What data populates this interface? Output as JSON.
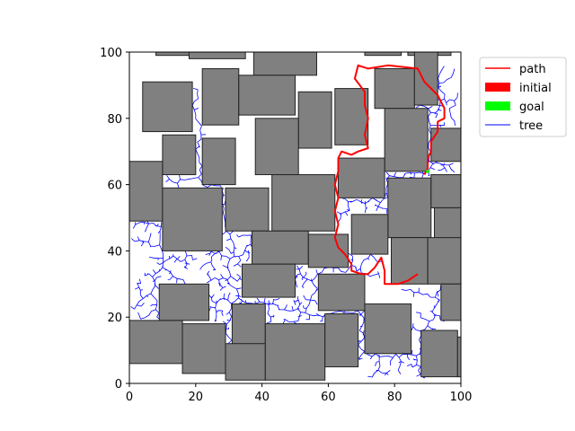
{
  "chart_data": {
    "type": "scatter",
    "title": "",
    "xlabel": "",
    "ylabel": "",
    "xlim": [
      0,
      100
    ],
    "ylim": [
      0,
      100
    ],
    "x_ticks": [
      "0",
      "20",
      "40",
      "60",
      "80",
      "100"
    ],
    "y_ticks": [
      "0",
      "20",
      "40",
      "60",
      "80",
      "100"
    ],
    "grid": false,
    "legend_position": "outside-upper-right",
    "legend": [
      {
        "name": "path",
        "kind": "line",
        "color": "#ff0000"
      },
      {
        "name": "initial",
        "kind": "patch",
        "color": "#ff0000"
      },
      {
        "name": "goal",
        "kind": "patch",
        "color": "#00ff00"
      },
      {
        "name": "tree",
        "kind": "line",
        "color": "#0000ff"
      }
    ],
    "obstacle_color": "#808080",
    "obstacles": [
      [
        8,
        99,
        15,
        1.5
      ],
      [
        18,
        98,
        17,
        2
      ],
      [
        37.5,
        93,
        19,
        7
      ],
      [
        57,
        100,
        11,
        2
      ],
      [
        71,
        99,
        11,
        1.5
      ],
      [
        84,
        99,
        13,
        1.5
      ],
      [
        4,
        76,
        15,
        15
      ],
      [
        22,
        78,
        11,
        17
      ],
      [
        33,
        81,
        17,
        12
      ],
      [
        51,
        71,
        10,
        17
      ],
      [
        62,
        72,
        10,
        17
      ],
      [
        74,
        83,
        12,
        12
      ],
      [
        86,
        84,
        7,
        16
      ],
      [
        10,
        63,
        10,
        12
      ],
      [
        22,
        60,
        10,
        14
      ],
      [
        38,
        63,
        13,
        17
      ],
      [
        77,
        64,
        13,
        19
      ],
      [
        91,
        67,
        10,
        10
      ],
      [
        0,
        49,
        10,
        18
      ],
      [
        10,
        40,
        18,
        19
      ],
      [
        29,
        46,
        13,
        13
      ],
      [
        43,
        46,
        19,
        17
      ],
      [
        63,
        56,
        14,
        12
      ],
      [
        78,
        44,
        13,
        18
      ],
      [
        91,
        53,
        9,
        10
      ],
      [
        92,
        43,
        8,
        10
      ],
      [
        37,
        36,
        17,
        10
      ],
      [
        54,
        35,
        12,
        10
      ],
      [
        67,
        39,
        11,
        12
      ],
      [
        79,
        30,
        11,
        14
      ],
      [
        90,
        30,
        10,
        14
      ],
      [
        34,
        26,
        16,
        10
      ],
      [
        57,
        22,
        14,
        11
      ],
      [
        9,
        19,
        15,
        11
      ],
      [
        94,
        19,
        6,
        11
      ],
      [
        31,
        11,
        10,
        13
      ],
      [
        0,
        6,
        16,
        13
      ],
      [
        16,
        3,
        13,
        15
      ],
      [
        29,
        1,
        12,
        11
      ],
      [
        41,
        1,
        18,
        17
      ],
      [
        59,
        5,
        10,
        16
      ],
      [
        71,
        9,
        14,
        15
      ],
      [
        88,
        2,
        11,
        14
      ],
      [
        99,
        2,
        1,
        12
      ]
    ],
    "path": [
      [
        89,
        63
      ],
      [
        90,
        65
      ],
      [
        90,
        68
      ],
      [
        91,
        70
      ],
      [
        91,
        73
      ],
      [
        93,
        76
      ],
      [
        93,
        79
      ],
      [
        95,
        80
      ],
      [
        95,
        83
      ],
      [
        93,
        87
      ],
      [
        89,
        91
      ],
      [
        87,
        95
      ],
      [
        78,
        96
      ],
      [
        72,
        95
      ],
      [
        69,
        96
      ],
      [
        68,
        92
      ],
      [
        71,
        88
      ],
      [
        71,
        84
      ],
      [
        72,
        80
      ],
      [
        71,
        75
      ],
      [
        72,
        71
      ],
      [
        69,
        70
      ],
      [
        67,
        69
      ],
      [
        64,
        70
      ],
      [
        63,
        68
      ],
      [
        63,
        64
      ],
      [
        62,
        60
      ],
      [
        63,
        56
      ],
      [
        62,
        52
      ],
      [
        63,
        48
      ],
      [
        62,
        44
      ],
      [
        63,
        41
      ],
      [
        65,
        39
      ],
      [
        67,
        36
      ],
      [
        67,
        34
      ],
      [
        70,
        33
      ],
      [
        72,
        33
      ],
      [
        74,
        35
      ],
      [
        76,
        38
      ],
      [
        77,
        34
      ],
      [
        77,
        30
      ],
      [
        81,
        30
      ],
      [
        84,
        31
      ],
      [
        87,
        33
      ]
    ],
    "goal": [
      90,
      64
    ]
  }
}
